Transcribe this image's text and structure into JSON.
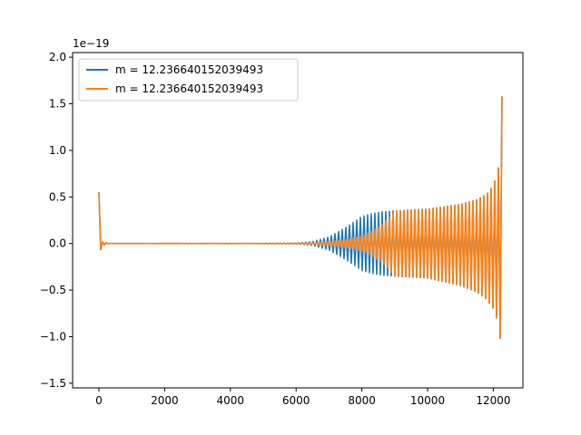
{
  "chart_data": {
    "type": "line",
    "title": "",
    "xlabel": "",
    "ylabel": "",
    "xlim": [
      -800,
      12900
    ],
    "ylim": [
      -1.55,
      2.05
    ],
    "x_ticks": [
      0,
      2000,
      4000,
      6000,
      8000,
      10000,
      12000
    ],
    "x_tick_labels": [
      "0",
      "2000",
      "4000",
      "6000",
      "8000",
      "10000",
      "12000"
    ],
    "y_ticks": [
      -1.5,
      -1.0,
      -0.5,
      0.0,
      0.5,
      1.0,
      1.5,
      2.0
    ],
    "y_tick_labels": [
      "−1.5",
      "−1.0",
      "−0.5",
      "0.0",
      "0.5",
      "1.0",
      "1.5",
      "2.0"
    ],
    "offset_text": "1e−19",
    "grid": false,
    "legend_position": "upper-left",
    "series": [
      {
        "name": "m = 12.236640152039493",
        "color": "#1f77b4",
        "envelope": {
          "x": [
            0,
            30,
            60,
            100,
            300,
            1000,
            3000,
            5000,
            6000,
            6500,
            7000,
            7500,
            7800,
            8000,
            8300,
            8600,
            9000,
            10000,
            11000,
            11500,
            11800,
            12000,
            12150,
            12220,
            12260,
            12280
          ],
          "upper": [
            0.55,
            0.2,
            0.05,
            0.02,
            0.0,
            0.0,
            0.002,
            0.002,
            0.005,
            0.02,
            0.07,
            0.17,
            0.24,
            0.29,
            0.32,
            0.34,
            0.35,
            0.37,
            0.42,
            0.47,
            0.53,
            0.62,
            0.8,
            1.05,
            1.5,
            1.93
          ],
          "lower": [
            -0.36,
            -0.15,
            -0.05,
            -0.02,
            0.0,
            0.0,
            -0.002,
            -0.002,
            -0.005,
            -0.02,
            -0.07,
            -0.17,
            -0.24,
            -0.29,
            -0.32,
            -0.34,
            -0.35,
            -0.37,
            -0.45,
            -0.52,
            -0.6,
            -0.7,
            -0.85,
            -1.05,
            -1.25,
            -1.37
          ]
        }
      },
      {
        "name": "m = 12.236640152039493",
        "color": "#ff7f0e",
        "envelope": {
          "x": [
            0,
            30,
            60,
            100,
            300,
            1000,
            3000,
            5000,
            6000,
            6500,
            7000,
            7500,
            8000,
            8300,
            8600,
            8800,
            9000,
            10000,
            11000,
            11500,
            11800,
            12000,
            12150,
            12220,
            12260,
            12280
          ],
          "upper": [
            0.55,
            0.2,
            0.05,
            0.02,
            0.0,
            0.0,
            0.002,
            0.002,
            0.003,
            0.008,
            0.02,
            0.04,
            0.08,
            0.13,
            0.2,
            0.27,
            0.35,
            0.37,
            0.42,
            0.47,
            0.53,
            0.62,
            0.8,
            1.05,
            1.5,
            1.93
          ],
          "lower": [
            -0.36,
            -0.15,
            -0.05,
            -0.02,
            0.0,
            0.0,
            -0.002,
            -0.002,
            -0.003,
            -0.008,
            -0.02,
            -0.04,
            -0.08,
            -0.13,
            -0.2,
            -0.27,
            -0.35,
            -0.37,
            -0.45,
            -0.52,
            -0.6,
            -0.7,
            -0.85,
            -1.05,
            -1.25,
            -1.37
          ]
        }
      }
    ]
  }
}
